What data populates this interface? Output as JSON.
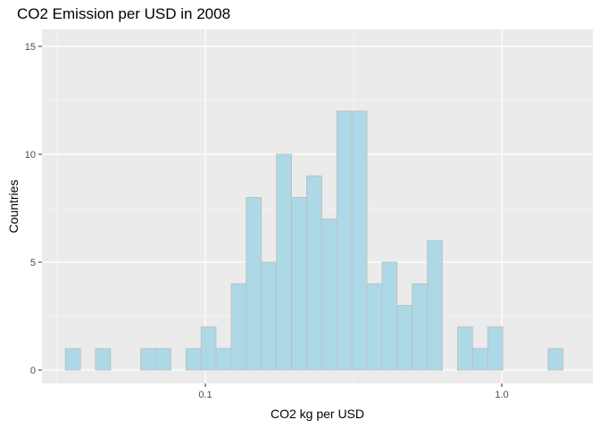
{
  "chart_data": {
    "type": "bar",
    "title": "CO2 Emission per USD in 2008",
    "xlabel": "CO2 kg per USD",
    "ylabel": "Countries",
    "x_scale": "log10",
    "x_ticks": [
      {
        "value": 0.1,
        "label": "0.1"
      },
      {
        "value": 1.0,
        "label": "1.0"
      }
    ],
    "y_ticks": [
      {
        "value": 0,
        "label": "0"
      },
      {
        "value": 5,
        "label": "5"
      },
      {
        "value": 10,
        "label": "10"
      },
      {
        "value": 15,
        "label": "15"
      }
    ],
    "ylim": [
      0,
      15
    ],
    "grid": true,
    "bins": [
      {
        "x0": 0.0337,
        "x1": 0.0379,
        "count": 1
      },
      {
        "x0": 0.0379,
        "x1": 0.0426,
        "count": 0
      },
      {
        "x0": 0.0426,
        "x1": 0.0479,
        "count": 1
      },
      {
        "x0": 0.0479,
        "x1": 0.0538,
        "count": 0
      },
      {
        "x0": 0.0538,
        "x1": 0.0605,
        "count": 0
      },
      {
        "x0": 0.0605,
        "x1": 0.068,
        "count": 1
      },
      {
        "x0": 0.068,
        "x1": 0.0765,
        "count": 1
      },
      {
        "x0": 0.0765,
        "x1": 0.086,
        "count": 0
      },
      {
        "x0": 0.086,
        "x1": 0.0967,
        "count": 1
      },
      {
        "x0": 0.0967,
        "x1": 0.1087,
        "count": 2
      },
      {
        "x0": 0.1087,
        "x1": 0.1222,
        "count": 1
      },
      {
        "x0": 0.1222,
        "x1": 0.1374,
        "count": 4
      },
      {
        "x0": 0.1374,
        "x1": 0.1545,
        "count": 8
      },
      {
        "x0": 0.1545,
        "x1": 0.1737,
        "count": 5
      },
      {
        "x0": 0.1737,
        "x1": 0.1953,
        "count": 10
      },
      {
        "x0": 0.1953,
        "x1": 0.2196,
        "count": 8
      },
      {
        "x0": 0.2196,
        "x1": 0.2469,
        "count": 9
      },
      {
        "x0": 0.2469,
        "x1": 0.2776,
        "count": 7
      },
      {
        "x0": 0.2776,
        "x1": 0.3121,
        "count": 12
      },
      {
        "x0": 0.3121,
        "x1": 0.3509,
        "count": 12
      },
      {
        "x0": 0.3509,
        "x1": 0.3946,
        "count": 4
      },
      {
        "x0": 0.3946,
        "x1": 0.4436,
        "count": 5
      },
      {
        "x0": 0.4436,
        "x1": 0.4988,
        "count": 3
      },
      {
        "x0": 0.4988,
        "x1": 0.5608,
        "count": 4
      },
      {
        "x0": 0.5608,
        "x1": 0.6305,
        "count": 6
      },
      {
        "x0": 0.6305,
        "x1": 0.7089,
        "count": 0
      },
      {
        "x0": 0.7089,
        "x1": 0.797,
        "count": 2
      },
      {
        "x0": 0.797,
        "x1": 0.8961,
        "count": 1
      },
      {
        "x0": 0.8961,
        "x1": 1.0075,
        "count": 2
      },
      {
        "x0": 1.0075,
        "x1": 1.1328,
        "count": 0
      },
      {
        "x0": 1.1328,
        "x1": 1.2736,
        "count": 0
      },
      {
        "x0": 1.2736,
        "x1": 1.432,
        "count": 0
      },
      {
        "x0": 1.432,
        "x1": 1.61,
        "count": 1
      }
    ],
    "colors": {
      "panel": "#ebebeb",
      "grid_major": "#ffffff",
      "grid_minor": "#f5f5f5",
      "bar_fill": "#add8e6",
      "bar_stroke": "#bebebe"
    }
  }
}
